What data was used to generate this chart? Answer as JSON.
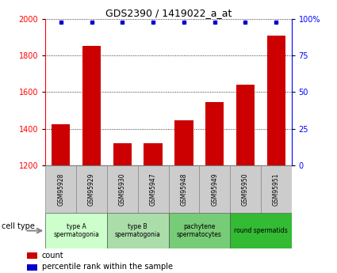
{
  "title": "GDS2390 / 1419022_a_at",
  "samples": [
    "GSM95928",
    "GSM95929",
    "GSM95930",
    "GSM95947",
    "GSM95948",
    "GSM95949",
    "GSM95950",
    "GSM95951"
  ],
  "counts": [
    1425,
    1855,
    1320,
    1320,
    1445,
    1545,
    1640,
    1910
  ],
  "percentile_ranks": [
    98,
    98,
    98,
    98,
    98,
    98,
    98,
    98
  ],
  "ylim_left": [
    1200,
    2000
  ],
  "ylim_right": [
    0,
    100
  ],
  "yticks_left": [
    1200,
    1400,
    1600,
    1800,
    2000
  ],
  "yticks_right": [
    0,
    25,
    50,
    75,
    100
  ],
  "bar_color": "#cc0000",
  "dot_color": "#0000cc",
  "group_colors": [
    "#ccffcc",
    "#aaddaa",
    "#77cc77",
    "#33bb33"
  ],
  "group_labels": [
    "type A\nspermatogonia",
    "type B\nspermatogonia",
    "pachytene\nspermatocytes",
    "round spermatids"
  ],
  "group_starts": [
    0,
    2,
    4,
    6
  ],
  "group_ends": [
    1,
    3,
    5,
    7
  ],
  "sample_box_color": "#cccccc",
  "legend_count_color": "#cc0000",
  "legend_pct_color": "#0000cc",
  "background_color": "#ffffff"
}
